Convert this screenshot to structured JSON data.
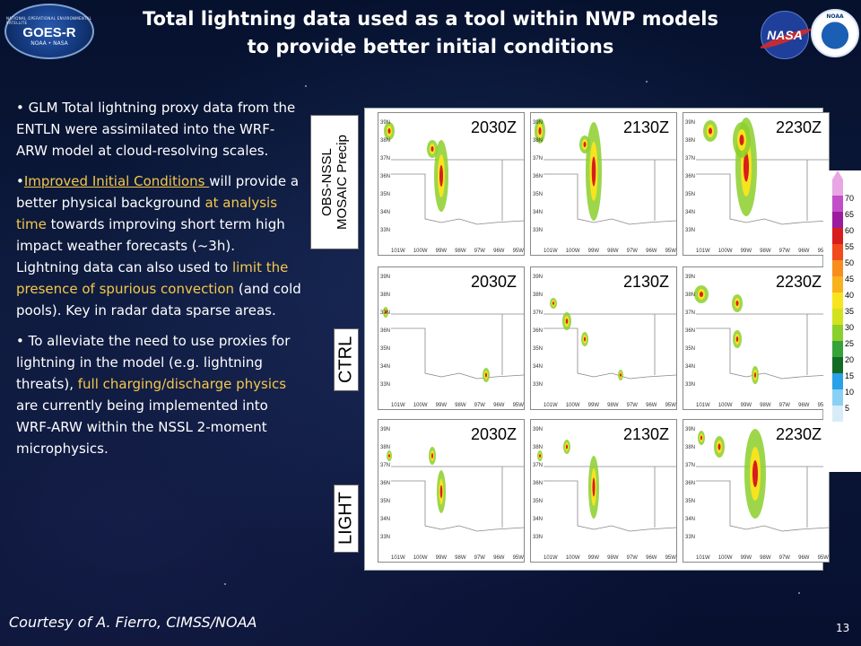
{
  "header": {
    "title_line1": "Total lightning data used as a tool within NWP models",
    "title_line2": "to provide better initial conditions"
  },
  "logos": {
    "goes": {
      "icon": "goes-r-logo",
      "top_text": "NATIONAL OPERATIONAL ENVIRONMENTAL SATELLITE",
      "main_text": "GOES-R",
      "bottom_text": "NOAA • NASA"
    },
    "nasa": {
      "icon": "nasa-logo",
      "text": "NASA"
    },
    "noaa": {
      "icon": "noaa-logo",
      "text": "NOAA"
    }
  },
  "bullets": {
    "b1": {
      "text": "GLM Total lightning proxy data from the ENTLN were assimilated into the WRF-ARW model at cloud-resolving scales."
    },
    "b2": {
      "link": "Improved Initial Conditions ",
      "t1": " will provide a better physical background ",
      "h1": "at analysis time",
      "t2": " towards improving short term high impact weather forecasts (~3h). Lightning data can also used to ",
      "h2": "limit the presence of spurious convection",
      "t3": " (and cold pools). Key in radar data sparse areas."
    },
    "b3": {
      "t1": "To alleviate the need to use proxies for lightning in the model (e.g. lightning threats), ",
      "h1": "full charging/discharge physics",
      "t2": " are currently being implemented into WRF-ARW within the NSSL 2-moment microphysics."
    }
  },
  "figure": {
    "rows": [
      {
        "label": "OBS-NSSL\nMOSAIC Precip",
        "times": [
          "2030Z",
          "2130Z",
          "2230Z"
        ]
      },
      {
        "label": "CTRL",
        "times": [
          "2030Z",
          "2130Z",
          "2230Z"
        ]
      },
      {
        "label": "LIGHT",
        "times": [
          "2030Z",
          "2130Z",
          "2230Z"
        ]
      }
    ],
    "lat_ticks": [
      "39N",
      "38N",
      "37N",
      "36N",
      "35N",
      "34N",
      "33N"
    ],
    "lon_ticks": [
      "101W",
      "100W",
      "99W",
      "98W",
      "97W",
      "96W",
      "95W"
    ],
    "colorbar": {
      "labels": [
        "70",
        "65",
        "60",
        "55",
        "50",
        "45",
        "40",
        "35",
        "30",
        "25",
        "20",
        "15",
        "10",
        "5"
      ],
      "colors": [
        "#e9a6e4",
        "#c24fc7",
        "#9b1c9e",
        "#d81d1d",
        "#f14a1c",
        "#f78d1e",
        "#f7b21e",
        "#f7e41e",
        "#d2e21c",
        "#8ccf2c",
        "#35a33a",
        "#126b24",
        "#2aa0e8",
        "#8ad0f4",
        "#d8ecf8"
      ]
    }
  },
  "footer": {
    "courtesy": "Courtesy of A. Fierro, CIMSS/NOAA",
    "page": "13"
  }
}
